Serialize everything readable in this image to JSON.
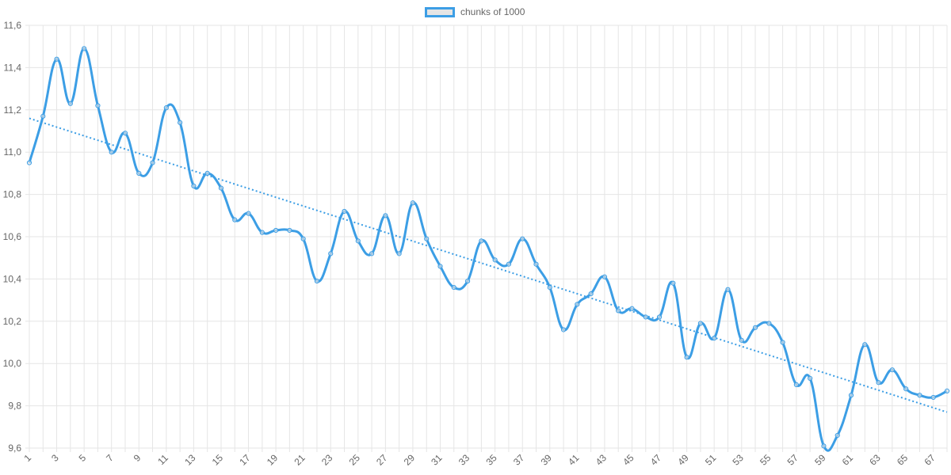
{
  "legend": {
    "label": "chunks of 1000"
  },
  "colors": {
    "line": "#3c9ee5",
    "trend": "#3c9ee5",
    "grid": "#e5e5e5",
    "text": "#666666"
  },
  "chart_data": {
    "type": "line",
    "title": "",
    "xlabel": "",
    "ylabel": "",
    "legend_position": "top",
    "grid": true,
    "ylim": [
      9.6,
      11.6
    ],
    "y_ticks": [
      "9,6",
      "9,8",
      "10,0",
      "10,2",
      "10,4",
      "10,6",
      "10,8",
      "11,0",
      "11,2",
      "11,4",
      "11,6"
    ],
    "x_tick_labels": [
      "1",
      "3",
      "5",
      "7",
      "9",
      "11",
      "13",
      "15",
      "17",
      "19",
      "21",
      "23",
      "25",
      "27",
      "29",
      "31",
      "33",
      "35",
      "37",
      "39",
      "41",
      "43",
      "45",
      "47",
      "49",
      "51",
      "53",
      "55",
      "57",
      "59",
      "61",
      "63",
      "65",
      "67"
    ],
    "x": [
      1,
      2,
      3,
      4,
      5,
      6,
      7,
      8,
      9,
      10,
      11,
      12,
      13,
      14,
      15,
      16,
      17,
      18,
      19,
      20,
      21,
      22,
      23,
      24,
      25,
      26,
      27,
      28,
      29,
      30,
      31,
      32,
      33,
      34,
      35,
      36,
      37,
      38,
      39,
      40,
      41,
      42,
      43,
      44,
      45,
      46,
      47,
      48,
      49,
      50,
      51,
      52,
      53,
      54,
      55,
      56,
      57,
      58,
      59,
      60,
      61,
      62,
      63,
      64,
      65,
      66,
      67,
      68
    ],
    "series": [
      {
        "name": "chunks of 1000",
        "values": [
          10.95,
          11.17,
          11.44,
          11.23,
          11.49,
          11.22,
          11.0,
          11.09,
          10.9,
          10.95,
          11.21,
          11.14,
          10.84,
          10.9,
          10.83,
          10.68,
          10.71,
          10.62,
          10.63,
          10.63,
          10.59,
          10.39,
          10.52,
          10.72,
          10.58,
          10.52,
          10.7,
          10.52,
          10.76,
          10.59,
          10.46,
          10.36,
          10.39,
          10.58,
          10.49,
          10.47,
          10.59,
          10.47,
          10.36,
          10.16,
          10.28,
          10.33,
          10.41,
          10.25,
          10.26,
          10.22,
          10.22,
          10.38,
          10.03,
          10.19,
          10.12,
          10.35,
          10.11,
          10.17,
          10.19,
          10.1,
          9.9,
          9.93,
          9.61,
          9.66,
          9.85,
          10.09,
          9.91,
          9.97,
          9.88,
          9.85,
          9.84,
          9.87
        ]
      }
    ],
    "trendline": {
      "start": 11.16,
      "end": 9.77,
      "style": "dotted"
    }
  }
}
